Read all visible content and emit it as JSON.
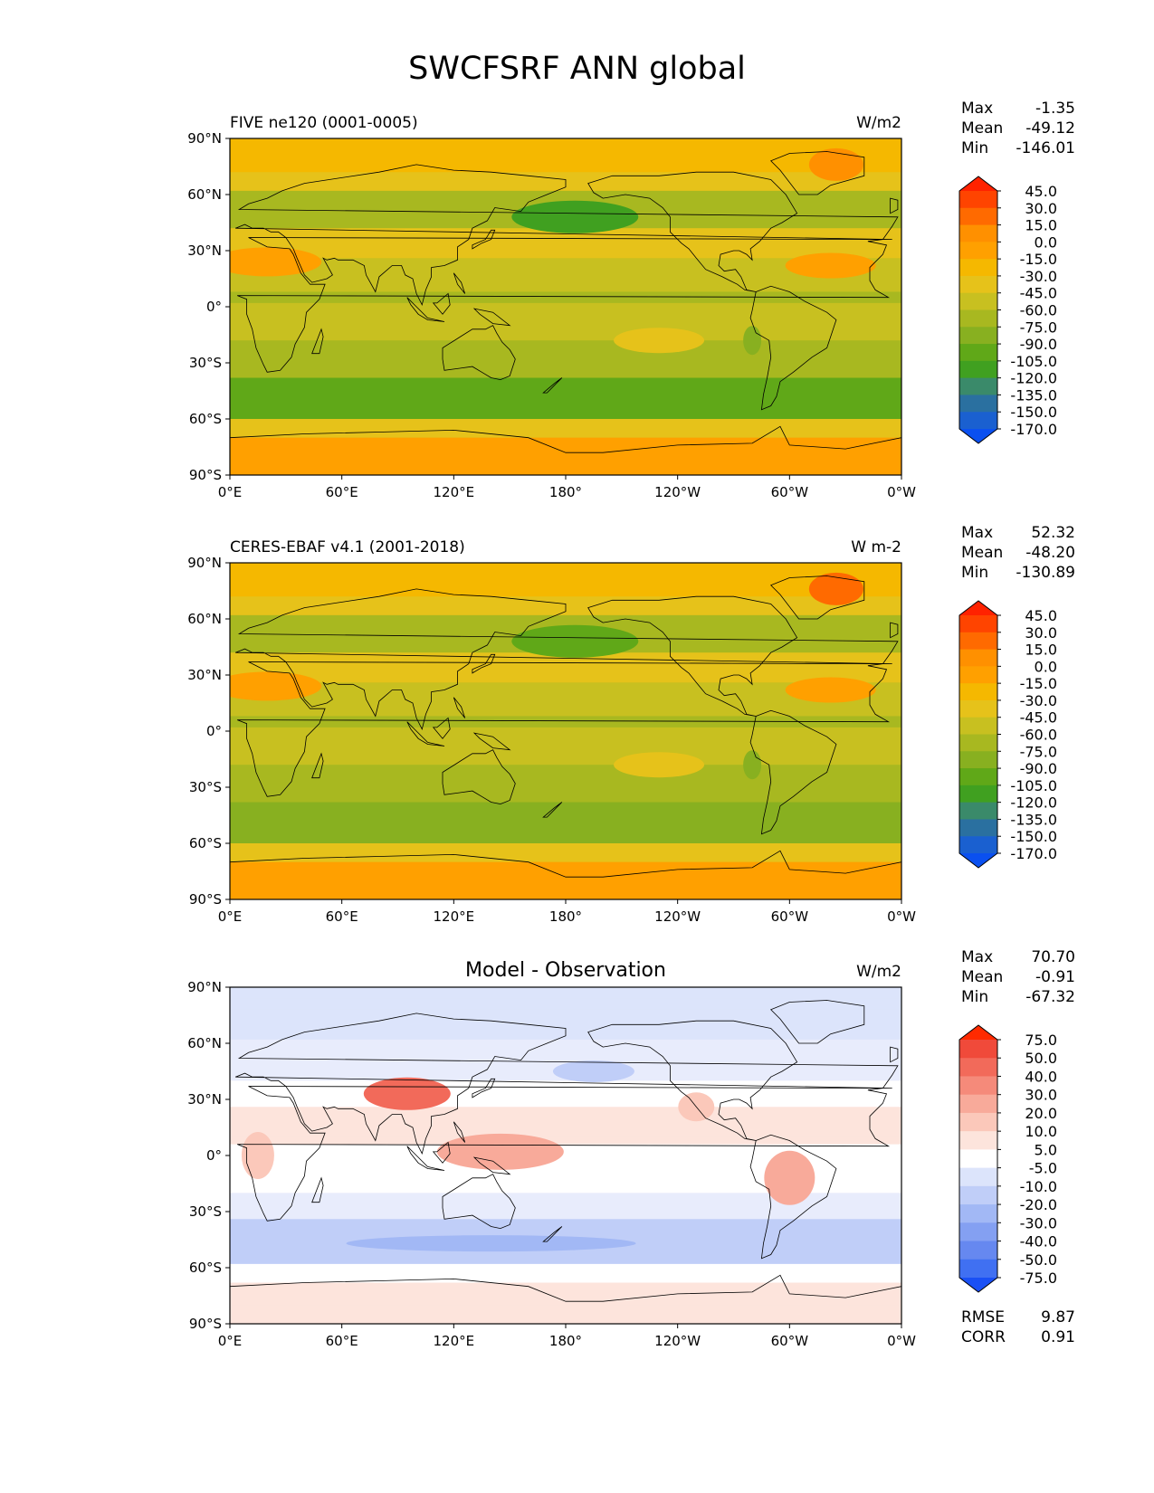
{
  "figure": {
    "title": "SWCFSRF ANN global"
  },
  "axes": {
    "lat_ticks": [
      "90°N",
      "60°N",
      "30°N",
      "0°",
      "30°S",
      "60°S",
      "90°S"
    ],
    "lon_ticks": [
      "0°E",
      "60°E",
      "120°E",
      "180°",
      "120°W",
      "60°W",
      "0°W"
    ]
  },
  "panels": [
    {
      "title": "FIVE ne120 (0001-0005)",
      "title_style": "left",
      "units": "W/m2",
      "stats": [
        {
          "label": "Max",
          "value": "-1.35"
        },
        {
          "label": "Mean",
          "value": "-49.12"
        },
        {
          "label": "Min",
          "value": "-146.01"
        }
      ],
      "colorbar": {
        "labels": [
          "45.0",
          "30.0",
          "15.0",
          "0.0",
          "-15.0",
          "-30.0",
          "-45.0",
          "-60.0",
          "-75.0",
          "-90.0",
          "-105.0",
          "-120.0",
          "-135.0",
          "-150.0",
          "-170.0"
        ],
        "colors": [
          "#ff2200",
          "#ff4400",
          "#ff6a00",
          "#ff9000",
          "#ffa000",
          "#f5b800",
          "#e6c21a",
          "#c8c020",
          "#a8b820",
          "#88b020",
          "#60a818",
          "#40a020",
          "#3a8a6a",
          "#2a70a0",
          "#1a60d0",
          "#0a50f0"
        ]
      }
    },
    {
      "title": "CERES-EBAF v4.1 (2001-2018)",
      "title_style": "left",
      "units": "W m-2",
      "stats": [
        {
          "label": "Max",
          "value": "52.32"
        },
        {
          "label": "Mean",
          "value": "-48.20"
        },
        {
          "label": "Min",
          "value": "-130.89"
        }
      ],
      "colorbar": {
        "labels": [
          "45.0",
          "30.0",
          "15.0",
          "0.0",
          "-15.0",
          "-30.0",
          "-45.0",
          "-60.0",
          "-75.0",
          "-90.0",
          "-105.0",
          "-120.0",
          "-135.0",
          "-150.0",
          "-170.0"
        ],
        "colors": [
          "#ff2200",
          "#ff4400",
          "#ff6a00",
          "#ff9000",
          "#ffa000",
          "#f5b800",
          "#e6c21a",
          "#c8c020",
          "#a8b820",
          "#88b020",
          "#60a818",
          "#40a020",
          "#3a8a6a",
          "#2a70a0",
          "#1a60d0",
          "#0a50f0"
        ]
      }
    },
    {
      "title": "Model - Observation",
      "title_style": "center",
      "units": "W/m2",
      "stats": [
        {
          "label": "Max",
          "value": "70.70"
        },
        {
          "label": "Mean",
          "value": "-0.91"
        },
        {
          "label": "Min",
          "value": "-67.32"
        }
      ],
      "extra_stats": [
        {
          "label": "RMSE",
          "value": "9.87"
        },
        {
          "label": "CORR",
          "value": "0.91"
        }
      ],
      "colorbar": {
        "labels": [
          "75.0",
          "50.0",
          "40.0",
          "30.0",
          "20.0",
          "10.0",
          "5.0",
          "-5.0",
          "-10.0",
          "-20.0",
          "-30.0",
          "-40.0",
          "-50.0",
          "-75.0"
        ],
        "colors": [
          "#ff2a00",
          "#f04a3a",
          "#f26a5a",
          "#f58a7a",
          "#f8aa9a",
          "#fbc8ba",
          "#fde4dc",
          "#ffffff",
          "#dce4fb",
          "#c0cef8",
          "#a2b8f5",
          "#84a0f2",
          "#6688f0",
          "#4070f2",
          "#1a50f5"
        ]
      }
    }
  ]
}
